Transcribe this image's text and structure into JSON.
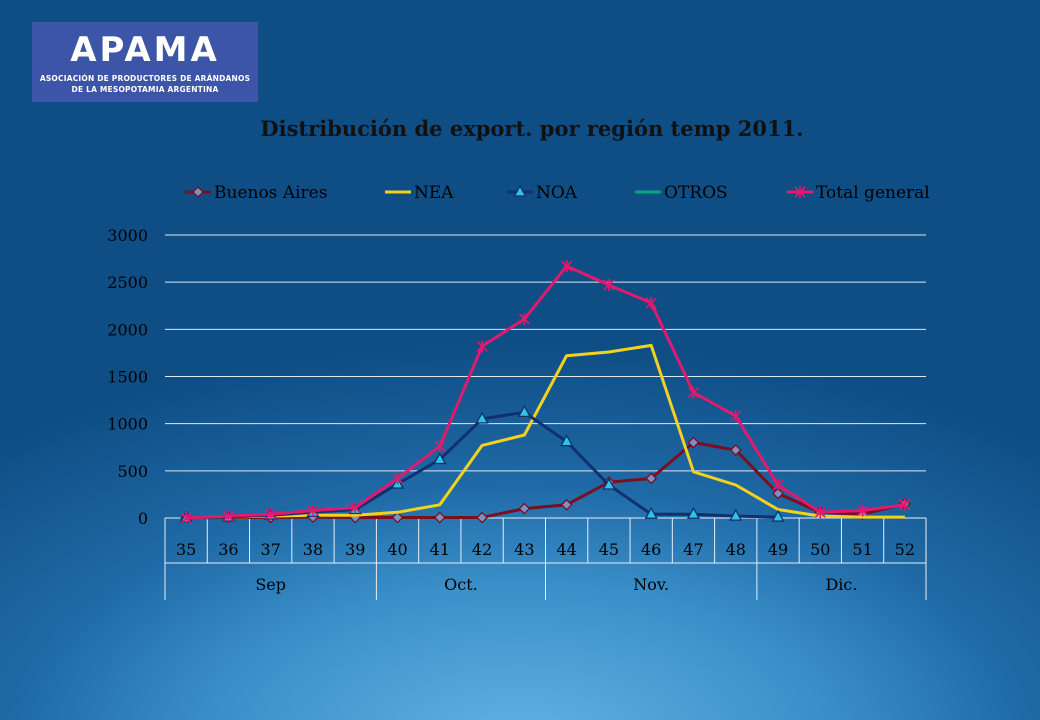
{
  "logo": {
    "word": "APAMA",
    "line1": "ASOCIACIÓN DE PRODUCTORES DE ARÁNDANOS",
    "line2": "DE LA MESOPOTAMIA ARGENTINA",
    "background": "#3c55a8"
  },
  "chart_data": {
    "type": "line",
    "title": "Distribución de export. por región temp 2011.",
    "xlabel": "",
    "ylabel": "",
    "ylim": [
      0,
      3000
    ],
    "yticks": [
      "0",
      "500",
      "1000",
      "1500",
      "2000",
      "2500",
      "3000"
    ],
    "categories": [
      "35",
      "36",
      "37",
      "38",
      "39",
      "40",
      "41",
      "42",
      "43",
      "44",
      "45",
      "46",
      "47",
      "48",
      "49",
      "50",
      "51",
      "52"
    ],
    "groups": [
      {
        "label": "Sep",
        "span": 5
      },
      {
        "label": "Oct.",
        "span": 4
      },
      {
        "label": "Nov.",
        "span": 5
      },
      {
        "label": "Dic.",
        "span": 4
      }
    ],
    "grid": true,
    "legend_position": "top",
    "series": [
      {
        "name": "Buenos Aires",
        "color": "#7a0f1f",
        "marker": "diamond",
        "values": [
          0,
          5,
          5,
          10,
          5,
          5,
          5,
          5,
          100,
          140,
          380,
          420,
          800,
          720,
          260,
          60,
          40,
          150
        ]
      },
      {
        "name": "NEA",
        "color": "#f2d21c",
        "marker": "none",
        "values": [
          0,
          10,
          20,
          30,
          30,
          60,
          140,
          770,
          880,
          1720,
          1760,
          1830,
          490,
          350,
          90,
          20,
          10,
          10
        ]
      },
      {
        "name": "NOA",
        "color": "#13306e",
        "marker": "triangle",
        "values": [
          0,
          10,
          30,
          60,
          90,
          360,
          620,
          1050,
          1120,
          810,
          350,
          40,
          40,
          20,
          10,
          null,
          null,
          null
        ]
      },
      {
        "name": "OTROS",
        "color": "#0aa37f",
        "marker": "none",
        "values": [
          null,
          null,
          null,
          null,
          null,
          null,
          null,
          null,
          null,
          null,
          null,
          null,
          null,
          null,
          null,
          null,
          null,
          null
        ]
      },
      {
        "name": "Total general",
        "color": "#e2196e",
        "marker": "star",
        "values": [
          0,
          20,
          40,
          80,
          110,
          420,
          760,
          1820,
          2110,
          2670,
          2470,
          2280,
          1330,
          1080,
          350,
          60,
          80,
          140
        ]
      }
    ]
  }
}
